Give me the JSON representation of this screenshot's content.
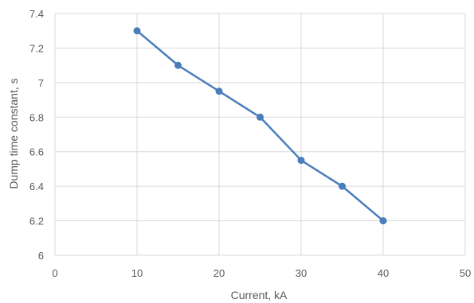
{
  "chart_data": {
    "type": "line",
    "title": "",
    "xlabel": "Current, kA",
    "ylabel": "Dump time constant, s",
    "xlim": [
      0,
      50
    ],
    "ylim": [
      6,
      7.4
    ],
    "x_ticks": [
      "0",
      "10",
      "20",
      "30",
      "40",
      "50"
    ],
    "y_ticks": [
      "6",
      "6.2",
      "6.4",
      "6.6",
      "6.8",
      "7",
      "7.2",
      "7.4"
    ],
    "grid": true,
    "legend": "none",
    "series": [
      {
        "color": "#4a7ebb",
        "x": [
          10,
          15,
          20,
          25,
          30,
          35,
          40
        ],
        "y": [
          7.3,
          7.1,
          6.95,
          6.8,
          6.55,
          6.4,
          6.2
        ]
      }
    ]
  }
}
